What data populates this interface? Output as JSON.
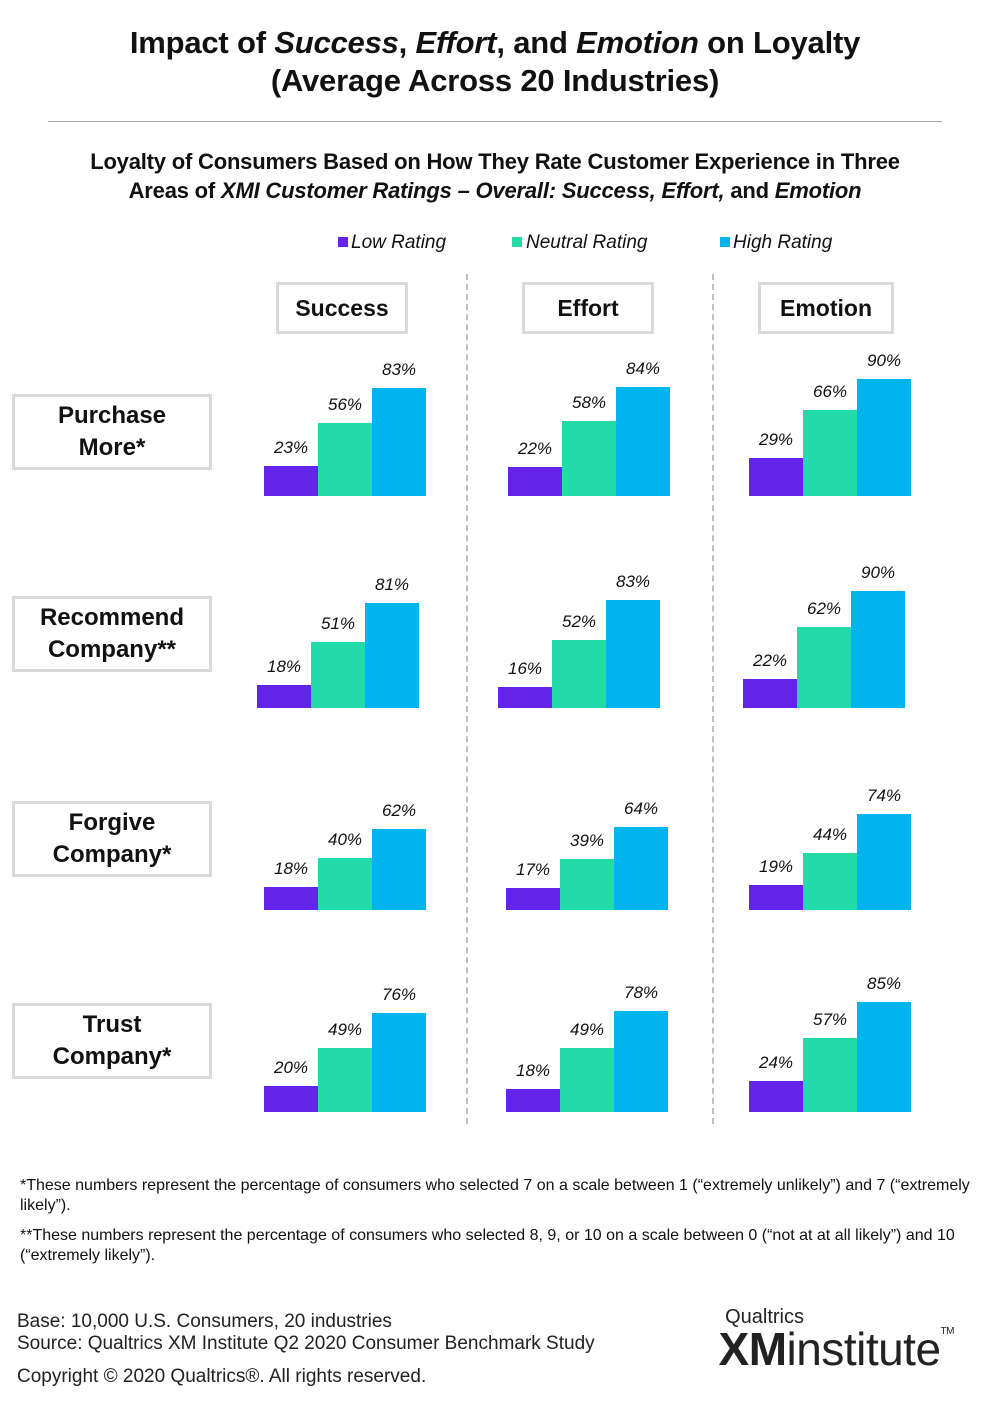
{
  "title": {
    "line1_a": "Impact of ",
    "line1_success": "Success",
    "line1_c": ", ",
    "line1_effort": "Effort",
    "line1_e": ", and ",
    "line1_emotion": "Emotion",
    "line1_g": " on Loyalty",
    "line2": "(Average Across 20 Industries)"
  },
  "subtitle": {
    "line1": "Loyalty of Consumers Based on How They Rate Customer Experience in Three",
    "line2_a": "Areas of ",
    "line2_b": "XMI Customer Ratings – Overall: Success, Effort,",
    "line2_c": " and ",
    "line2_d": "Emotion"
  },
  "colors": {
    "low": "#6423e8",
    "neutral": "#23dba8",
    "high": "#00b4f0"
  },
  "chart_data": {
    "type": "bar",
    "title": "Loyalty of Consumers Based on How They Rate Customer Experience in Three Areas of XMI Customer Ratings – Overall: Success, Effort, and Emotion",
    "legend": [
      "Low Rating",
      "Neutral Rating",
      "High Rating"
    ],
    "columns": [
      "Success",
      "Effort",
      "Emotion"
    ],
    "rows": [
      {
        "label_lines": [
          "Purchase",
          "More*"
        ],
        "values": [
          [
            23,
            56,
            83
          ],
          [
            22,
            58,
            84
          ],
          [
            29,
            66,
            90
          ]
        ]
      },
      {
        "label_lines": [
          "Recommend",
          "Company**"
        ],
        "values": [
          [
            18,
            51,
            81
          ],
          [
            16,
            52,
            83
          ],
          [
            22,
            62,
            90
          ]
        ]
      },
      {
        "label_lines": [
          "Forgive",
          "Company*"
        ],
        "values": [
          [
            18,
            40,
            62
          ],
          [
            17,
            39,
            64
          ],
          [
            19,
            44,
            74
          ]
        ]
      },
      {
        "label_lines": [
          "Trust",
          "Company*"
        ],
        "values": [
          [
            20,
            49,
            76
          ],
          [
            18,
            49,
            78
          ],
          [
            24,
            57,
            85
          ]
        ]
      }
    ],
    "value_suffix": "%",
    "ylim": [
      0,
      100
    ]
  },
  "notes": {
    "note1": "*These numbers represent the percentage of consumers who selected 7 on a scale between 1 (“extremely unlikely”) and 7 (“extremely likely”).",
    "note2": "**These numbers represent the percentage of consumers who selected 8, 9, or 10 on a scale between 0 (“not at at all likely”) and 10 (“extremely likely”)."
  },
  "footer": {
    "base": "Base: 10,000 U.S. Consumers, 20 industries",
    "source": "Source: Qualtrics XM Institute Q2 2020 Consumer Benchmark Study",
    "copyright": "Copyright © 2020 Qualtrics®.  All rights reserved."
  },
  "logo": {
    "top": "Qualtrics",
    "xm": "XM",
    "institute": "institute",
    "tm": "TM"
  }
}
